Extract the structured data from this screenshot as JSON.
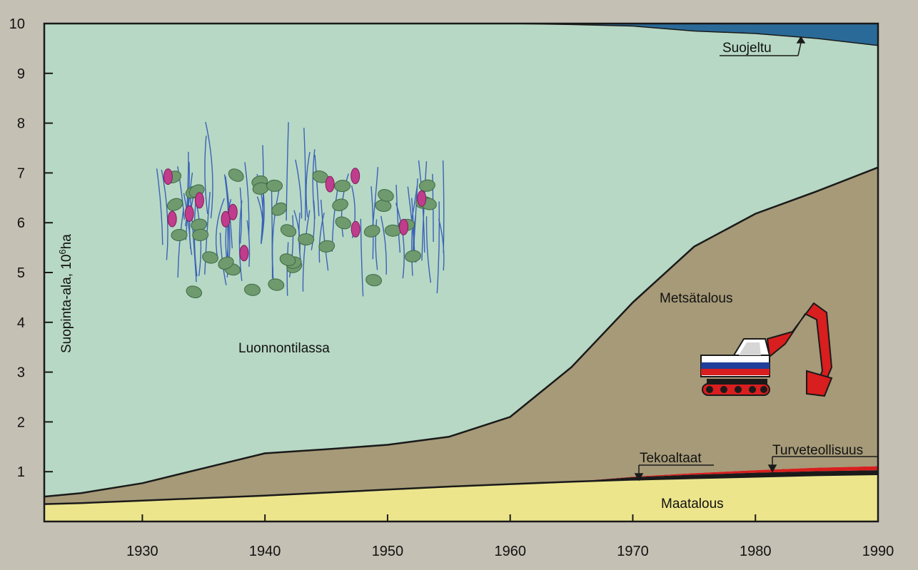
{
  "chart_data": {
    "type": "area",
    "stacked": true,
    "ylabel": "Suopinta-ala, 10",
    "ylabel_sup": "6",
    "ylabel_unit": "ha",
    "xlim": [
      1922,
      1990
    ],
    "ylim": [
      0,
      10
    ],
    "x_ticks": [
      1930,
      1940,
      1950,
      1960,
      1970,
      1980,
      1990
    ],
    "y_ticks": [
      1,
      2,
      3,
      4,
      5,
      6,
      7,
      8,
      9,
      10
    ],
    "grid": false,
    "colors": {
      "maatalous": "#ede58c",
      "tekoaltaat": "#1b1b1b",
      "turveteollisuus": "#d81e1e",
      "metsatalous": "#a69a78",
      "luonnontilassa": "#b7d8c4",
      "suojeltu": "#2a6a98",
      "frame": "#1a1a1a",
      "background": "#c4c0b4"
    },
    "x": [
      1922,
      1925,
      1930,
      1935,
      1940,
      1945,
      1950,
      1955,
      1960,
      1965,
      1970,
      1975,
      1980,
      1985,
      1990
    ],
    "series": [
      {
        "name": "Maatalous",
        "key": "maatalous",
        "values": [
          0.35,
          0.37,
          0.42,
          0.47,
          0.52,
          0.58,
          0.64,
          0.7,
          0.75,
          0.8,
          0.84,
          0.87,
          0.9,
          0.93,
          0.95
        ]
      },
      {
        "name": "Tekoaltaat",
        "key": "tekoaltaat",
        "values": [
          0,
          0,
          0,
          0,
          0,
          0,
          0,
          0,
          0,
          0,
          0.05,
          0.07,
          0.08,
          0.08,
          0.08
        ]
      },
      {
        "name": "Turveteollisuus",
        "key": "turveteollisuus",
        "values": [
          0,
          0,
          0,
          0,
          0,
          0,
          0,
          0,
          0,
          0,
          0.01,
          0.03,
          0.05,
          0.07,
          0.08
        ]
      },
      {
        "name": "Metsätalous",
        "key": "metsatalous",
        "values": [
          0.15,
          0.2,
          0.35,
          0.6,
          0.85,
          0.87,
          0.9,
          1.0,
          1.35,
          2.3,
          3.5,
          4.55,
          5.15,
          5.55,
          6.0
        ]
      },
      {
        "name": "Luonnontilassa",
        "key": "luonnontilassa",
        "values": [
          9.5,
          9.43,
          9.23,
          8.93,
          8.63,
          8.55,
          8.46,
          8.3,
          7.9,
          6.88,
          5.55,
          4.33,
          3.62,
          3.07,
          2.45
        ]
      },
      {
        "name": "Suojeltu",
        "key": "suojeltu",
        "values": [
          0,
          0,
          0,
          0,
          0,
          0,
          0,
          0,
          0,
          0.02,
          0.05,
          0.15,
          0.2,
          0.3,
          0.44
        ]
      }
    ],
    "annotations": {
      "suojeltu": "Suojeltu",
      "luonnontilassa": "Luonnontilassa",
      "metsatalous": "Metsätalous",
      "tekoaltaat": "Tekoaltaat",
      "turveteollisuus": "Turveteollisuus",
      "maatalous": "Maatalous"
    }
  }
}
